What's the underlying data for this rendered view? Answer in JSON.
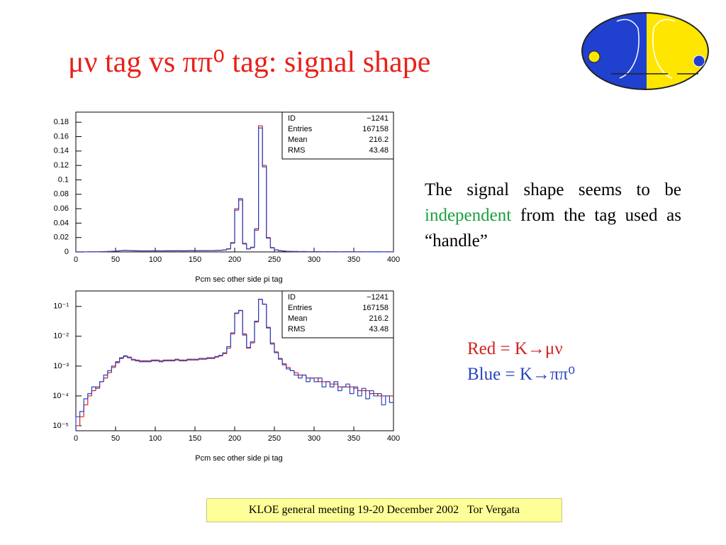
{
  "slide": {
    "title": "μν tag vs ππ⁰ tag: signal shape",
    "body": [
      "The signal shape seems to be ",
      "independent",
      " from the tag used as “handle”"
    ],
    "footer": "KLOE general meeting 19-20 December 2002   Tor Vergata"
  },
  "chart_data": [
    {
      "type": "histogram",
      "log_y": false,
      "x_label": "Pcm sec other side pi tag",
      "bins": [
        0,
        5,
        10,
        15,
        20,
        25,
        30,
        35,
        40,
        45,
        50,
        55,
        60,
        65,
        70,
        75,
        80,
        85,
        90,
        95,
        100,
        105,
        110,
        115,
        120,
        125,
        130,
        135,
        140,
        145,
        150,
        155,
        160,
        165,
        170,
        175,
        180,
        185,
        190,
        195,
        200,
        205,
        210,
        215,
        220,
        225,
        230,
        235,
        240,
        245,
        250,
        255,
        260,
        265,
        270,
        275,
        280,
        285,
        290,
        295,
        300,
        305,
        310,
        315,
        320,
        325,
        330,
        335,
        340,
        345,
        350,
        355,
        360,
        365,
        370,
        375,
        380,
        385,
        390,
        395,
        400
      ],
      "series": [
        {
          "name": "Red = K→μν",
          "color": "#d42020",
          "values": [
            1e-05,
            2e-05,
            5e-05,
            0.0001,
            0.00015,
            0.0002,
            0.0003,
            0.0004,
            0.0006,
            0.0009,
            0.0013,
            0.0018,
            0.0021,
            0.002,
            0.0017,
            0.0016,
            0.0015,
            0.0014,
            0.0015,
            0.0016,
            0.0015,
            0.0015,
            0.0016,
            0.0015,
            0.0016,
            0.0016,
            0.0015,
            0.0016,
            0.0016,
            0.0017,
            0.0016,
            0.0017,
            0.0018,
            0.0018,
            0.0019,
            0.002,
            0.0022,
            0.0026,
            0.004,
            0.012,
            0.06,
            0.072,
            0.012,
            0.004,
            0.006,
            0.03,
            0.175,
            0.12,
            0.02,
            0.006,
            0.003,
            0.0018,
            0.0012,
            0.0009,
            0.0007,
            0.0006,
            0.0005,
            0.0005,
            0.0004,
            0.0004,
            0.0004,
            0.0003,
            0.0003,
            0.0003,
            0.00025,
            0.00025,
            0.0002,
            0.0002,
            0.0002,
            0.0002,
            0.00018,
            0.00015,
            0.00015,
            0.00015,
            0.00012,
            0.00012,
            0.0001,
            0.0001,
            0.0001,
            0.0001
          ]
        },
        {
          "name": "Blue = K→ππ⁰",
          "color": "#2a44c0",
          "values": [
            2e-05,
            3e-05,
            8e-05,
            0.00012,
            0.0002,
            0.00018,
            0.0003,
            0.0005,
            0.0007,
            0.001,
            0.0014,
            0.0019,
            0.0022,
            0.0019,
            0.0016,
            0.0015,
            0.0014,
            0.0015,
            0.0014,
            0.0015,
            0.0016,
            0.0014,
            0.0015,
            0.0016,
            0.0015,
            0.0017,
            0.0016,
            0.0015,
            0.0017,
            0.0016,
            0.0017,
            0.0018,
            0.0017,
            0.0019,
            0.0018,
            0.0021,
            0.0023,
            0.0028,
            0.0045,
            0.013,
            0.058,
            0.074,
            0.011,
            0.0042,
            0.0065,
            0.032,
            0.172,
            0.118,
            0.019,
            0.0055,
            0.0028,
            0.0017,
            0.0011,
            0.0008,
            0.0007,
            0.0005,
            0.0004,
            0.0005,
            0.0003,
            0.0004,
            0.0003,
            0.0004,
            0.0002,
            0.0003,
            0.0002,
            0.0003,
            0.00015,
            0.0002,
            0.00025,
            0.00012,
            0.0002,
            0.0001,
            0.00018,
            8e-05,
            0.00015,
            0.0001,
            0.00012,
            5e-05,
            0.0001,
            6e-05
          ]
        }
      ],
      "xlim": [
        0,
        400
      ],
      "xticks": [
        0,
        50,
        100,
        150,
        200,
        250,
        300,
        350,
        400
      ],
      "ylim": [
        0,
        0.194
      ],
      "yticks": [
        0,
        0.02,
        0.04,
        0.06,
        0.08,
        0.1,
        0.12,
        0.14,
        0.16,
        0.18
      ],
      "stats": [
        {
          "label": "ID",
          "value": "−1241"
        },
        {
          "label": "Entries",
          "value": 167158
        },
        {
          "label": "Mean",
          "value": 216.2
        },
        {
          "label": "RMS",
          "value": 43.48
        }
      ]
    },
    {
      "type": "histogram",
      "log_y": true,
      "x_label": "Pcm sec other side pi tag",
      "bins": [
        0,
        5,
        10,
        15,
        20,
        25,
        30,
        35,
        40,
        45,
        50,
        55,
        60,
        65,
        70,
        75,
        80,
        85,
        90,
        95,
        100,
        105,
        110,
        115,
        120,
        125,
        130,
        135,
        140,
        145,
        150,
        155,
        160,
        165,
        170,
        175,
        180,
        185,
        190,
        195,
        200,
        205,
        210,
        215,
        220,
        225,
        230,
        235,
        240,
        245,
        250,
        255,
        260,
        265,
        270,
        275,
        280,
        285,
        290,
        295,
        300,
        305,
        310,
        315,
        320,
        325,
        330,
        335,
        340,
        345,
        350,
        355,
        360,
        365,
        370,
        375,
        380,
        385,
        390,
        395,
        400
      ],
      "series": [
        {
          "color": "#d42020",
          "values": [
            1e-05,
            2e-05,
            5e-05,
            0.0001,
            0.00015,
            0.0002,
            0.0003,
            0.0004,
            0.0006,
            0.0009,
            0.0013,
            0.0018,
            0.0021,
            0.002,
            0.0017,
            0.0016,
            0.0015,
            0.0014,
            0.0015,
            0.0016,
            0.0015,
            0.0015,
            0.0016,
            0.0015,
            0.0016,
            0.0016,
            0.0015,
            0.0016,
            0.0016,
            0.0017,
            0.0016,
            0.0017,
            0.0018,
            0.0018,
            0.0019,
            0.002,
            0.0022,
            0.0026,
            0.004,
            0.012,
            0.06,
            0.072,
            0.012,
            0.004,
            0.006,
            0.03,
            0.175,
            0.12,
            0.02,
            0.006,
            0.003,
            0.0018,
            0.0012,
            0.0009,
            0.0007,
            0.0006,
            0.0005,
            0.0005,
            0.0004,
            0.0004,
            0.0004,
            0.0003,
            0.0003,
            0.0003,
            0.00025,
            0.00025,
            0.0002,
            0.0002,
            0.0002,
            0.0002,
            0.00018,
            0.00015,
            0.00015,
            0.00015,
            0.00012,
            0.00012,
            0.0001,
            0.0001,
            0.0001,
            0.0001
          ]
        },
        {
          "color": "#2a44c0",
          "values": [
            2e-05,
            3e-05,
            8e-05,
            0.00012,
            0.0002,
            0.00018,
            0.0003,
            0.0005,
            0.0007,
            0.001,
            0.0014,
            0.0019,
            0.0022,
            0.0019,
            0.0016,
            0.0015,
            0.0014,
            0.0015,
            0.0014,
            0.0015,
            0.0016,
            0.0014,
            0.0015,
            0.0016,
            0.0015,
            0.0017,
            0.0016,
            0.0015,
            0.0017,
            0.0016,
            0.0017,
            0.0018,
            0.0017,
            0.0019,
            0.0018,
            0.0021,
            0.0023,
            0.0028,
            0.0045,
            0.013,
            0.058,
            0.074,
            0.011,
            0.0042,
            0.0065,
            0.032,
            0.172,
            0.118,
            0.019,
            0.0055,
            0.0028,
            0.0017,
            0.0011,
            0.0008,
            0.0007,
            0.0005,
            0.0004,
            0.0005,
            0.0003,
            0.0004,
            0.0003,
            0.0004,
            0.0002,
            0.0003,
            0.0002,
            0.0003,
            0.00015,
            0.0002,
            0.00025,
            0.00012,
            0.0002,
            0.0001,
            0.00018,
            8e-05,
            0.00015,
            0.0001,
            0.00012,
            5e-05,
            0.0001,
            6e-05
          ]
        }
      ],
      "xlim": [
        0,
        400
      ],
      "xticks": [
        0,
        50,
        100,
        150,
        200,
        250,
        300,
        350,
        400
      ],
      "ylim": [
        6.8e-06,
        0.33
      ],
      "yticks": [
        {
          "value": 1e-05,
          "label": "10⁻⁵"
        },
        {
          "value": 0.0001,
          "label": "10⁻⁴"
        },
        {
          "value": 0.001,
          "label": "10⁻³"
        },
        {
          "value": 0.01,
          "label": "10⁻²"
        },
        {
          "value": 0.1,
          "label": "10⁻¹"
        }
      ],
      "stats": [
        {
          "label": "ID",
          "value": "−1241"
        },
        {
          "label": "Entries",
          "value": 167158
        },
        {
          "label": "Mean",
          "value": 216.2
        },
        {
          "label": "RMS",
          "value": 43.48
        }
      ]
    }
  ]
}
